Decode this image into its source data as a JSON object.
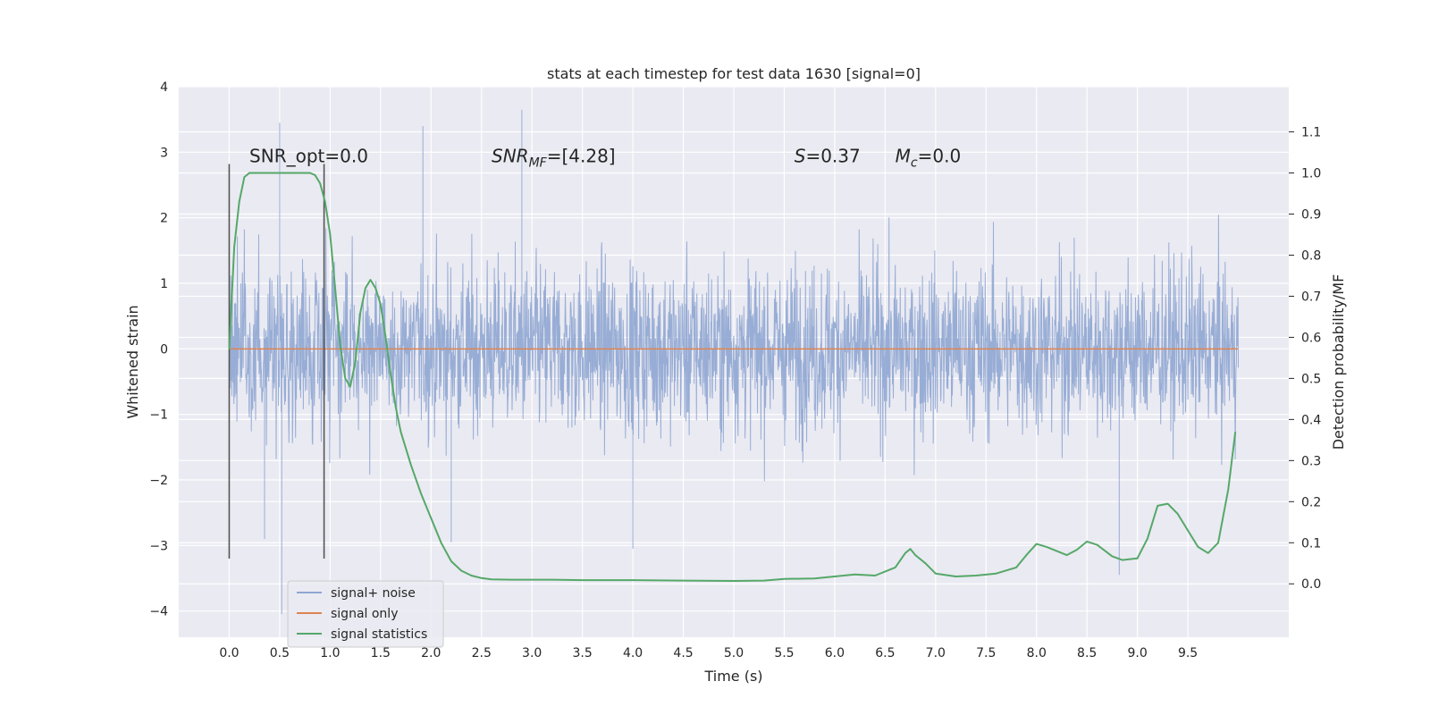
{
  "chart_data": {
    "type": "line",
    "title": "stats at each timestep for test data 1630 [signal=0]",
    "xlabel": "Time (s)",
    "ylabel": "Whitened strain",
    "y2label": "Detection probability/MF",
    "xlim": [
      -0.5,
      10.5
    ],
    "ylim": [
      -4.4,
      4.0
    ],
    "y2lim": [
      -0.13,
      1.21
    ],
    "x_ticks": [
      0.0,
      0.5,
      1.0,
      1.5,
      2.0,
      2.5,
      3.0,
      3.5,
      4.0,
      4.5,
      5.0,
      5.5,
      6.0,
      6.5,
      7.0,
      7.5,
      8.0,
      8.5,
      9.0,
      9.5
    ],
    "x_tick_labels": [
      "0.0",
      "0.5",
      "1.0",
      "1.5",
      "2.0",
      "2.5",
      "3.0",
      "3.5",
      "4.0",
      "4.5",
      "5.0",
      "5.5",
      "6.0",
      "6.5",
      "7.0",
      "7.5",
      "8.0",
      "8.5",
      "9.0",
      "9.5"
    ],
    "y_ticks": [
      -4,
      -3,
      -2,
      -1,
      0,
      1,
      2,
      3,
      4
    ],
    "y_tick_labels": [
      "−4",
      "−3",
      "−2",
      "−1",
      "0",
      "1",
      "2",
      "3",
      "4"
    ],
    "y2_ticks": [
      0.0,
      0.1,
      0.2,
      0.3,
      0.4,
      0.5,
      0.6,
      0.7,
      0.8,
      0.9,
      1.0,
      1.1
    ],
    "y2_tick_labels": [
      "0.0",
      "0.1",
      "0.2",
      "0.3",
      "0.4",
      "0.5",
      "0.6",
      "0.7",
      "0.8",
      "0.9",
      "1.0",
      "1.1"
    ],
    "grid": true,
    "legend_position": "lower-left",
    "annotations": [
      {
        "text": "SNR_opt=0.0",
        "x": 0.2,
        "y": 2.85
      },
      {
        "text": "SNR_MF=[4.28]",
        "x": 2.6,
        "y": 2.85
      },
      {
        "text": "S=0.37",
        "x": 5.6,
        "y": 2.85
      },
      {
        "text": "M_c=0.0",
        "x": 6.6,
        "y": 2.85
      }
    ],
    "vlines": [
      {
        "x": 0.0,
        "ymin": -3.2,
        "ymax": 2.82
      },
      {
        "x": 0.94,
        "ymin": -3.2,
        "ymax": 2.82
      }
    ],
    "series": [
      {
        "name": "signal+ noise",
        "axis": "left",
        "color": "#8fa6d1",
        "kind": "noise",
        "x_range": [
          0.0,
          10.0
        ],
        "envelope_upper": 2.0,
        "envelope_lower": -2.0,
        "spikes": [
          {
            "x": 0.5,
            "y": 3.45
          },
          {
            "x": 0.52,
            "y": -4.05
          },
          {
            "x": 2.9,
            "y": 3.65
          },
          {
            "x": 1.92,
            "y": 3.4
          },
          {
            "x": 8.82,
            "y": -3.45
          },
          {
            "x": 4.0,
            "y": -3.05
          },
          {
            "x": 2.2,
            "y": -2.95
          },
          {
            "x": 0.35,
            "y": -2.9
          }
        ]
      },
      {
        "name": "signal only",
        "axis": "left",
        "color": "#dd8452",
        "x": [
          0.0,
          10.0
        ],
        "values": [
          0.0,
          0.0
        ]
      },
      {
        "name": "signal statistics",
        "axis": "right",
        "color": "#55a868",
        "x": [
          0.0,
          0.05,
          0.1,
          0.15,
          0.2,
          0.3,
          0.4,
          0.5,
          0.6,
          0.7,
          0.8,
          0.85,
          0.9,
          0.95,
          1.0,
          1.05,
          1.1,
          1.15,
          1.2,
          1.25,
          1.3,
          1.35,
          1.4,
          1.45,
          1.5,
          1.55,
          1.6,
          1.65,
          1.7,
          1.8,
          1.9,
          2.0,
          2.1,
          2.2,
          2.3,
          2.4,
          2.5,
          2.6,
          2.8,
          3.0,
          3.2,
          3.5,
          4.0,
          4.5,
          5.0,
          5.3,
          5.5,
          5.8,
          6.0,
          6.2,
          6.4,
          6.6,
          6.7,
          6.75,
          6.8,
          6.9,
          7.0,
          7.2,
          7.4,
          7.6,
          7.8,
          7.9,
          8.0,
          8.1,
          8.3,
          8.4,
          8.5,
          8.6,
          8.75,
          8.85,
          9.0,
          9.1,
          9.2,
          9.3,
          9.4,
          9.5,
          9.6,
          9.7,
          9.8,
          9.9,
          9.97
        ],
        "values": [
          0.57,
          0.82,
          0.93,
          0.99,
          1.0,
          1.0,
          1.0,
          1.0,
          1.0,
          1.0,
          1.0,
          0.995,
          0.975,
          0.93,
          0.85,
          0.72,
          0.58,
          0.5,
          0.48,
          0.54,
          0.66,
          0.72,
          0.74,
          0.72,
          0.68,
          0.6,
          0.51,
          0.43,
          0.37,
          0.29,
          0.22,
          0.16,
          0.1,
          0.055,
          0.032,
          0.02,
          0.014,
          0.011,
          0.01,
          0.01,
          0.01,
          0.009,
          0.009,
          0.008,
          0.007,
          0.008,
          0.012,
          0.013,
          0.018,
          0.023,
          0.02,
          0.04,
          0.075,
          0.085,
          0.07,
          0.05,
          0.025,
          0.018,
          0.02,
          0.025,
          0.04,
          0.07,
          0.097,
          0.09,
          0.07,
          0.083,
          0.103,
          0.095,
          0.067,
          0.058,
          0.062,
          0.11,
          0.19,
          0.195,
          0.17,
          0.13,
          0.09,
          0.075,
          0.1,
          0.23,
          0.37
        ]
      }
    ]
  }
}
